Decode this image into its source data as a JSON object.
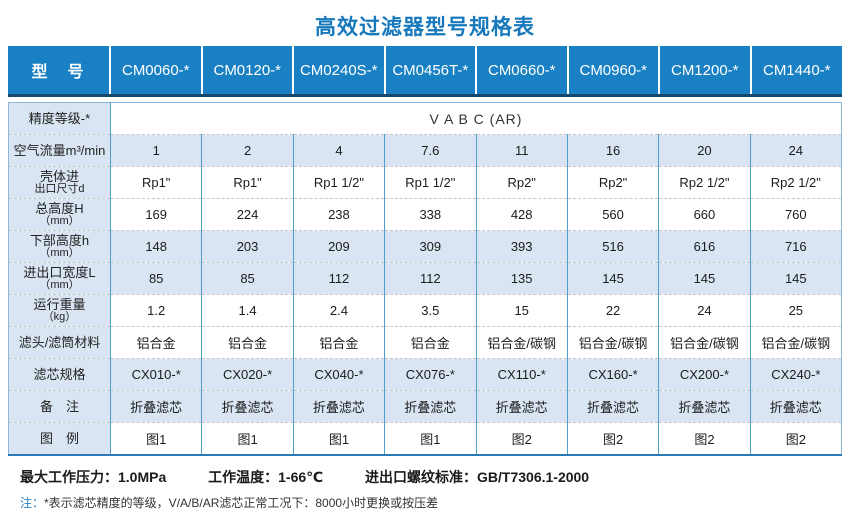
{
  "title": "高效过滤器型号规格表",
  "colors": {
    "header_blue": "#1a80c4",
    "navy_underline": "#17496c",
    "light_blue_cell": "#d9e5f2",
    "column_border_blue": "#4f9fcc",
    "bottom_border_blue": "#2e79b8",
    "title_blue": "#1779bb",
    "note_blue": "#2e80c0"
  },
  "table": {
    "header": {
      "label": "型　号",
      "models": [
        "CM0060-*",
        "CM0120-*",
        "CM0240S-*",
        "CM0456T-*",
        "CM0660-*",
        "CM0960-*",
        "CM1200-*",
        "CM1440-*"
      ]
    },
    "rows": [
      {
        "id": "precision-grade",
        "label_lines": [
          "精度等级-*"
        ],
        "merged": true,
        "merged_value": "V A B C (AR)",
        "band": "white"
      },
      {
        "id": "air-flow",
        "label_lines": [
          "空气流量m³/min"
        ],
        "values": [
          "1",
          "2",
          "4",
          "7.6",
          "11",
          "16",
          "20",
          "24"
        ],
        "band": "blue"
      },
      {
        "id": "port-size",
        "label_lines": [
          "壳体进",
          "出口尺寸d"
        ],
        "values": [
          "Rp1\"",
          "Rp1\"",
          "Rp1 1/2\"",
          "Rp1 1/2\"",
          "Rp2\"",
          "Rp2\"",
          "Rp2 1/2\"",
          "Rp2 1/2\""
        ],
        "band": "white"
      },
      {
        "id": "total-height",
        "label_lines": [
          "总高度H",
          "（mm）"
        ],
        "values": [
          "169",
          "224",
          "238",
          "338",
          "428",
          "560",
          "660",
          "760"
        ],
        "band": "white"
      },
      {
        "id": "lower-height",
        "label_lines": [
          "下部高度h",
          "（mm）"
        ],
        "values": [
          "148",
          "203",
          "209",
          "309",
          "393",
          "516",
          "616",
          "716"
        ],
        "band": "blue"
      },
      {
        "id": "port-width",
        "label_lines": [
          "进出口宽度L",
          "（mm）"
        ],
        "values": [
          "85",
          "85",
          "112",
          "112",
          "135",
          "145",
          "145",
          "145"
        ],
        "band": "blue"
      },
      {
        "id": "running-weight",
        "label_lines": [
          "运行重量",
          "（kg）"
        ],
        "values": [
          "1.2",
          "1.4",
          "2.4",
          "3.5",
          "15",
          "22",
          "24",
          "25"
        ],
        "band": "white"
      },
      {
        "id": "material",
        "label_lines": [
          "滤头/滤筒材料"
        ],
        "values": [
          "铝合金",
          "铝合金",
          "铝合金",
          "铝合金",
          "铝合金/碳钢",
          "铝合金/碳钢",
          "铝合金/碳钢",
          "铝合金/碳钢"
        ],
        "band": "white"
      },
      {
        "id": "element-spec",
        "label_lines": [
          "滤芯规格"
        ],
        "values": [
          "CX010-*",
          "CX020-*",
          "CX040-*",
          "CX076-*",
          "CX110-*",
          "CX160-*",
          "CX200-*",
          "CX240-*"
        ],
        "band": "blue"
      },
      {
        "id": "remark",
        "label_lines": [
          "备　注"
        ],
        "values": [
          "折叠滤芯",
          "折叠滤芯",
          "折叠滤芯",
          "折叠滤芯",
          "折叠滤芯",
          "折叠滤芯",
          "折叠滤芯",
          "折叠滤芯"
        ],
        "band": "blue"
      },
      {
        "id": "figure",
        "label_lines": [
          "图　例"
        ],
        "values": [
          "图1",
          "图1",
          "图1",
          "图1",
          "图2",
          "图2",
          "图2",
          "图2"
        ],
        "band": "white"
      }
    ]
  },
  "footer": {
    "specs": [
      {
        "label": "最大工作压力：",
        "value": "1.0MPa"
      },
      {
        "label": "工作温度：",
        "value": "1-66℃"
      },
      {
        "label": "进出口螺纹标准：",
        "value": "GB/T7306.1-2000"
      }
    ],
    "note_prefix": "注：",
    "note_text": "*表示滤芯精度的等级，V/A/B/AR滤芯正常工况下：8000小时更换或按压差"
  }
}
